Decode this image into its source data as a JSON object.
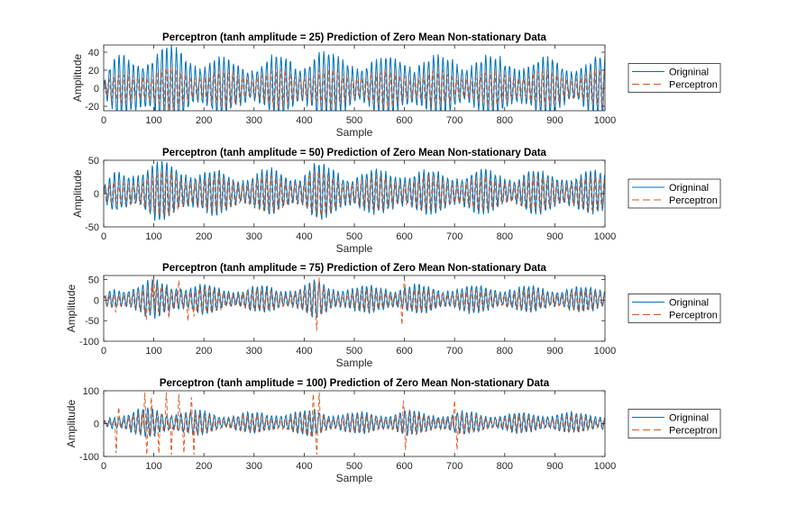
{
  "figure": {
    "background": "#ffffff",
    "axis_color": "#262626",
    "grid": false
  },
  "colors": {
    "original": "#0072BD",
    "perceptron": "#D95319"
  },
  "chart_data": [
    {
      "type": "line",
      "title": "Perceptron (tanh amplitude = 25) Prediction of Zero Mean Non-stationary Data",
      "xlabel": "Sample",
      "ylabel": "Amplitude",
      "xlim": [
        0,
        1000
      ],
      "ylim": [
        -25,
        48
      ],
      "xticks": [
        0,
        100,
        200,
        300,
        400,
        500,
        600,
        700,
        800,
        900,
        1000
      ],
      "yticks": [
        -20,
        0,
        20,
        40
      ],
      "tanh_amplitude": 25,
      "legend": {
        "placement": "outside-right",
        "entries": [
          "Origninal",
          "Perceptron"
        ]
      },
      "series": [
        {
          "name": "Origninal",
          "style": "solid",
          "color": "#0072BD",
          "x_range": [
            0,
            1000
          ],
          "oscillation_period_samples": 9.5,
          "envelope_x": [
            0,
            20,
            50,
            80,
            100,
            130,
            160,
            200,
            250,
            300,
            350,
            400,
            420,
            450,
            500,
            550,
            600,
            650,
            700,
            750,
            800,
            850,
            900,
            950,
            1000
          ],
          "envelope_y": [
            8,
            30,
            38,
            44,
            46,
            44,
            42,
            36,
            30,
            32,
            34,
            36,
            46,
            38,
            34,
            32,
            40,
            32,
            36,
            34,
            33,
            32,
            34,
            30,
            34
          ]
        },
        {
          "name": "Perceptron",
          "style": "dashed",
          "color": "#D95319",
          "x_range": [
            0,
            1000
          ],
          "oscillation_period_samples": 9.5,
          "envelope_x": [
            0,
            50,
            100,
            150,
            200,
            300,
            400,
            420,
            450,
            500,
            600,
            700,
            800,
            900,
            1000
          ],
          "envelope_y": [
            10,
            20,
            24,
            24,
            22,
            20,
            22,
            24,
            22,
            20,
            22,
            20,
            20,
            20,
            20
          ]
        }
      ]
    },
    {
      "type": "line",
      "title": "Perceptron (tanh amplitude = 50) Prediction of Zero Mean Non-stationary Data",
      "xlabel": "Sample",
      "ylabel": "Amplitude",
      "xlim": [
        0,
        1000
      ],
      "ylim": [
        -50,
        50
      ],
      "xticks": [
        0,
        100,
        200,
        300,
        400,
        500,
        600,
        700,
        800,
        900,
        1000
      ],
      "yticks": [
        -50,
        0,
        50
      ],
      "tanh_amplitude": 50,
      "legend": {
        "placement": "outside-right",
        "entries": [
          "Origninal",
          "Perceptron"
        ]
      },
      "series": [
        {
          "name": "Origninal",
          "style": "solid",
          "color": "#0072BD",
          "x_range": [
            0,
            1000
          ],
          "oscillation_period_samples": 9.5,
          "envelope_x": [
            0,
            20,
            50,
            80,
            100,
            130,
            160,
            200,
            250,
            300,
            350,
            400,
            420,
            450,
            500,
            550,
            600,
            650,
            700,
            750,
            800,
            850,
            900,
            950,
            1000
          ],
          "envelope_y": [
            8,
            30,
            38,
            44,
            46,
            44,
            42,
            36,
            30,
            32,
            34,
            36,
            46,
            38,
            34,
            32,
            40,
            32,
            36,
            34,
            33,
            32,
            34,
            30,
            34
          ]
        },
        {
          "name": "Perceptron",
          "style": "dashed",
          "color": "#D95319",
          "x_range": [
            0,
            1000
          ],
          "oscillation_period_samples": 9.5,
          "envelope_x": [
            0,
            50,
            100,
            150,
            180,
            200,
            300,
            400,
            420,
            450,
            500,
            600,
            700,
            800,
            900,
            1000
          ],
          "envelope_y": [
            10,
            28,
            34,
            36,
            30,
            28,
            26,
            30,
            38,
            30,
            26,
            28,
            26,
            26,
            26,
            26
          ]
        }
      ]
    },
    {
      "type": "line",
      "title": "Perceptron (tanh amplitude = 75) Prediction of Zero Mean Non-stationary Data",
      "xlabel": "Sample",
      "ylabel": "Amplitude",
      "xlim": [
        0,
        1000
      ],
      "ylim": [
        -100,
        60
      ],
      "xticks": [
        0,
        100,
        200,
        300,
        400,
        500,
        600,
        700,
        800,
        900,
        1000
      ],
      "yticks": [
        -100,
        -50,
        0,
        50
      ],
      "tanh_amplitude": 75,
      "legend": {
        "placement": "outside-right",
        "entries": [
          "Origninal",
          "Perceptron"
        ]
      },
      "series": [
        {
          "name": "Origninal",
          "style": "solid",
          "color": "#0072BD",
          "x_range": [
            0,
            1000
          ],
          "oscillation_period_samples": 9.5,
          "envelope_x": [
            0,
            20,
            50,
            80,
            100,
            130,
            160,
            200,
            250,
            300,
            350,
            400,
            420,
            450,
            500,
            550,
            600,
            650,
            700,
            750,
            800,
            850,
            900,
            950,
            1000
          ],
          "envelope_y": [
            8,
            30,
            38,
            44,
            46,
            44,
            42,
            36,
            30,
            32,
            34,
            36,
            46,
            38,
            34,
            32,
            40,
            32,
            36,
            34,
            33,
            32,
            34,
            30,
            34
          ]
        },
        {
          "name": "Perceptron",
          "style": "dashed",
          "color": "#D95319",
          "x_range": [
            0,
            1000
          ],
          "oscillation_period_samples": 9.5,
          "envelope_x": [
            0,
            50,
            100,
            150,
            200,
            300,
            400,
            420,
            450,
            500,
            600,
            700,
            800,
            900,
            1000
          ],
          "envelope_y": [
            10,
            30,
            36,
            34,
            30,
            26,
            30,
            40,
            30,
            26,
            30,
            26,
            26,
            26,
            26
          ],
          "spikes": [
            {
              "x": 24,
              "y": -30
            },
            {
              "x": 85,
              "y": -48
            },
            {
              "x": 100,
              "y": 55
            },
            {
              "x": 130,
              "y": -44
            },
            {
              "x": 150,
              "y": 48
            },
            {
              "x": 168,
              "y": -50
            },
            {
              "x": 180,
              "y": -40
            },
            {
              "x": 425,
              "y": -75
            },
            {
              "x": 430,
              "y": 55
            },
            {
              "x": 595,
              "y": -60
            },
            {
              "x": 600,
              "y": 52
            }
          ]
        }
      ]
    },
    {
      "type": "line",
      "title": "Perceptron (tanh amplitude = 100) Prediction of Zero Mean Non-stationary Data",
      "xlabel": "Sample",
      "ylabel": "Amplitude",
      "xlim": [
        0,
        1000
      ],
      "ylim": [
        -100,
        100
      ],
      "xticks": [
        0,
        100,
        200,
        300,
        400,
        500,
        600,
        700,
        800,
        900,
        1000
      ],
      "yticks": [
        -100,
        0,
        100
      ],
      "tanh_amplitude": 100,
      "legend": {
        "placement": "outside-right",
        "entries": [
          "Origninal",
          "Perceptron"
        ]
      },
      "series": [
        {
          "name": "Origninal",
          "style": "solid",
          "color": "#0072BD",
          "x_range": [
            0,
            1000
          ],
          "oscillation_period_samples": 9.5,
          "envelope_x": [
            0,
            20,
            50,
            80,
            100,
            130,
            160,
            200,
            250,
            300,
            350,
            400,
            420,
            450,
            500,
            550,
            600,
            650,
            700,
            750,
            800,
            850,
            900,
            950,
            1000
          ],
          "envelope_y": [
            8,
            30,
            38,
            44,
            46,
            44,
            42,
            36,
            30,
            32,
            34,
            36,
            46,
            38,
            34,
            32,
            40,
            32,
            36,
            34,
            33,
            32,
            34,
            30,
            34
          ]
        },
        {
          "name": "Perceptron",
          "style": "dashed",
          "color": "#D95319",
          "x_range": [
            0,
            1000
          ],
          "oscillation_period_samples": 9.5,
          "envelope_x": [
            0,
            50,
            100,
            150,
            200,
            300,
            400,
            420,
            450,
            500,
            600,
            700,
            800,
            900,
            1000
          ],
          "envelope_y": [
            10,
            30,
            40,
            40,
            30,
            26,
            32,
            50,
            30,
            26,
            34,
            30,
            26,
            26,
            26
          ],
          "spikes": [
            {
              "x": 25,
              "y": -90
            },
            {
              "x": 30,
              "y": 50
            },
            {
              "x": 82,
              "y": 95
            },
            {
              "x": 86,
              "y": -95
            },
            {
              "x": 95,
              "y": 80
            },
            {
              "x": 110,
              "y": -90
            },
            {
              "x": 125,
              "y": 95
            },
            {
              "x": 135,
              "y": -95
            },
            {
              "x": 150,
              "y": 90
            },
            {
              "x": 160,
              "y": -90
            },
            {
              "x": 175,
              "y": 80
            },
            {
              "x": 180,
              "y": -95
            },
            {
              "x": 418,
              "y": 90
            },
            {
              "x": 425,
              "y": -95
            },
            {
              "x": 430,
              "y": 95
            },
            {
              "x": 598,
              "y": 70
            },
            {
              "x": 602,
              "y": -80
            },
            {
              "x": 700,
              "y": 70
            },
            {
              "x": 705,
              "y": -80
            }
          ]
        }
      ]
    }
  ]
}
